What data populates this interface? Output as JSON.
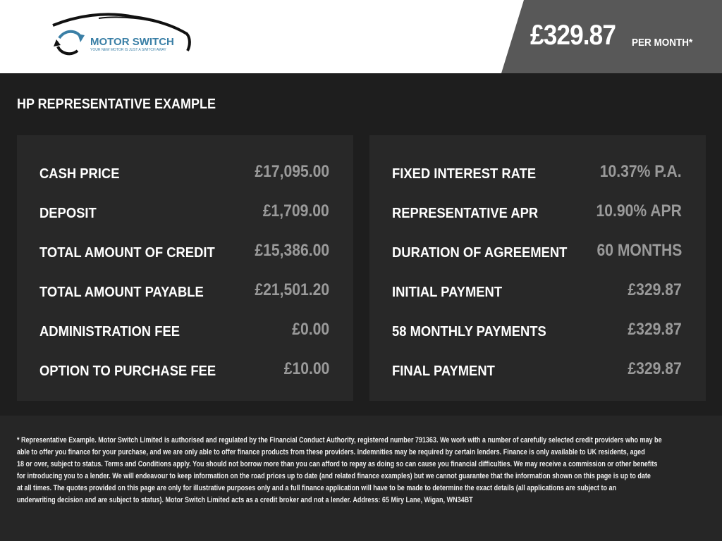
{
  "header": {
    "logo_text": "MOTOR SWITCH",
    "logo_tagline": "YOUR NEW MOTOR IS JUST A SWITCH AWAY",
    "monthly_price": "£329.87",
    "per_month_label": "PER MONTH*",
    "accent_color": "#3a7fa6"
  },
  "section_title": "HP REPRESENTATIVE EXAMPLE",
  "left_panel": [
    {
      "label": "CASH PRICE",
      "value": "£17,095.00"
    },
    {
      "label": "DEPOSIT",
      "value": "£1,709.00"
    },
    {
      "label": "TOTAL AMOUNT OF CREDIT",
      "value": "£15,386.00"
    },
    {
      "label": "TOTAL AMOUNT PAYABLE",
      "value": "£21,501.20"
    },
    {
      "label": "ADMINISTRATION FEE",
      "value": "£0.00"
    },
    {
      "label": "OPTION TO PURCHASE FEE",
      "value": "£10.00"
    }
  ],
  "right_panel": [
    {
      "label": "FIXED INTEREST RATE",
      "value": "10.37% P.A."
    },
    {
      "label": "REPRESENTATIVE APR",
      "value": "10.90% APR"
    },
    {
      "label": "DURATION OF AGREEMENT",
      "value": "60 MONTHS"
    },
    {
      "label": "INITIAL PAYMENT",
      "value": "£329.87"
    },
    {
      "label": "58 MONTHLY PAYMENTS",
      "value": "£329.87"
    },
    {
      "label": "FINAL PAYMENT",
      "value": "£329.87"
    }
  ],
  "disclaimer_lines": [
    "* Representative Example. Motor Switch Limited  is authorised and regulated by the Financial Conduct Authority, registered number 791363. We work with a number of carefully selected credit providers who may be",
    "able to offer you finance for your purchase, and we are only able to offer finance products from these providers. Indemnities may be required by certain lenders. Finance is only available to UK residents, aged",
    "18 or over, subject to status. Terms and Conditions apply. You should not borrow more than you can afford to repay as doing so can cause you financial difficulties. We may receive a commission or other benefits",
    "for introducing you to a lender. We will endeavour to keep information on the road prices up to date (and related finance examples) but we cannot guarantee that the information shown on this page is up to date",
    "at all times. The quotes provided on this page are only for illustrative purposes only and a full finance application will have to be made to determine the exact details (all applications are subject to an",
    "underwriting decision and are subject to status). Motor Switch Limited  acts as a credit broker and not a lender. Address: 65 Miry Lane, Wigan, WN34BT"
  ]
}
